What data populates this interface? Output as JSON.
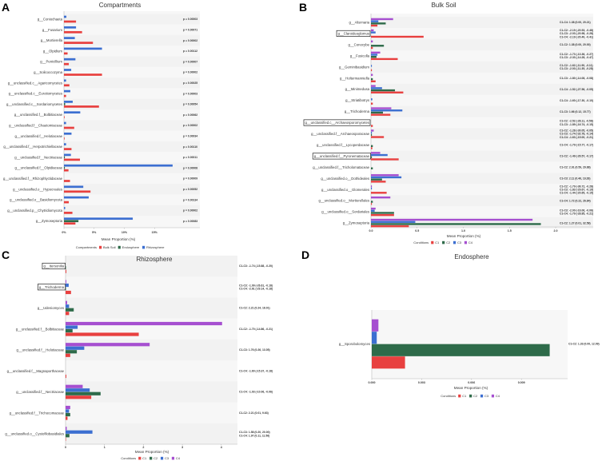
{
  "chart_data": [
    {
      "panel_letter": "A",
      "type": "bar",
      "orientation": "horizontal",
      "title": "Compartments",
      "xlabel": "Mean Proportion (%)",
      "xticks": [
        0,
        5,
        10,
        15
      ],
      "xtick_labels": [
        "0%",
        "5%",
        "10%",
        "15%"
      ],
      "legend_title": "Compartments",
      "legend": [
        "Bulk Soil",
        "Endosphere",
        "Rhizosphere"
      ],
      "legend_colors": [
        "#e8403f",
        "#2e6b4a",
        "#3c6fd1"
      ],
      "boxed": [],
      "categories": [
        "g__Coniochaeta",
        "g__Fusarium",
        "g__Mortierella",
        "g__Olpidium",
        "g__Penicillium",
        "g__Solicoccozyma",
        "g__unclassified.c__Agaricomycetes",
        "g__unclassified.c__Eurotiomycetes",
        "g__unclassified.c__Sordariomycetes",
        "g__unclassified.f__Bolbitiaceae",
        "g__unclassified.f__Chaetomiaceae",
        "g__unclassified.f__Helotiaceae",
        "g__unclassified.f__Herpotrichiellaceae",
        "g__unclassified.f__Nectriaceae",
        "g__unclassified.f__Olpidiaceae",
        "g__unclassified.f__Rhizophlyctidaceae",
        "g__unclassified.o__Hypocreales",
        "g__unclassified.o__Basidiomycota",
        "g__unclassified.p__Chytridiomycota",
        "g__Zymoseptoria"
      ],
      "series": [
        {
          "name": "Rhizosphere",
          "color": "#3c6fd1",
          "values": [
            0.4,
            2.0,
            1.8,
            6.3,
            1.9,
            1.2,
            0.35,
            1.05,
            1.45,
            2.7,
            0.35,
            1.25,
            0.35,
            1.15,
            18.0,
            0,
            3.2,
            4.1,
            0.2,
            11.4
          ]
        },
        {
          "name": "Endosphere",
          "color": "#2e6b4a",
          "values": [
            0,
            0.05,
            0,
            0,
            0,
            0,
            0,
            0,
            0.2,
            0,
            0,
            0,
            0,
            0.15,
            0.15,
            0,
            0,
            0,
            0,
            2.4
          ]
        },
        {
          "name": "Bulk Soil",
          "color": "#e8403f",
          "values": [
            2.0,
            3.0,
            4.8,
            0.6,
            0.8,
            6.3,
            0.9,
            0.35,
            5.8,
            0.1,
            1.7,
            0.1,
            1.25,
            2.65,
            0.75,
            1.0,
            4.4,
            0.8,
            1.4,
            1.9
          ]
        }
      ],
      "annotations": [
        [
          "p = 0.00003"
        ],
        [
          "p = 0.00071"
        ],
        [
          "p = 0.00002"
        ],
        [
          "p = 0.00112"
        ],
        [
          "p = 0.00007"
        ],
        [
          "p = 0.00002"
        ],
        [
          "p = 0.00025"
        ],
        [
          "p = 0.00003"
        ],
        [
          "p = 0.00054"
        ],
        [
          "p = 0.00062"
        ],
        [
          "p = 0.00002"
        ],
        [
          "p = 0.00034"
        ],
        [
          "p = 0.00110"
        ],
        [
          "p = 0.00011"
        ],
        [
          "p = 0.00008"
        ],
        [
          "p = 0.00009"
        ],
        [
          "p = 0.00052"
        ],
        [
          "p = 0.00134"
        ],
        [
          "p = 0.00002"
        ],
        [
          "p = 0.00083"
        ]
      ]
    },
    {
      "panel_letter": "B",
      "type": "bar",
      "orientation": "horizontal",
      "title": "Bulk Soil",
      "xlabel": "Mean Proportion (%)",
      "xticks": [
        0,
        0.5,
        1.0,
        1.5,
        2.0
      ],
      "xtick_labels": [
        "0.0",
        "0.5",
        "1.0",
        "1.5",
        "2.0"
      ],
      "legend_title": "Conditions",
      "legend": [
        "C1",
        "C2",
        "C3",
        "C4"
      ],
      "legend_colors": [
        "#e8403f",
        "#2e6b4a",
        "#3c6fd1",
        "#a64fd0"
      ],
      "boxed": [
        "g__Claroideoglomus",
        "g__unclassified.c__Archaeosporomycetes",
        "g__unclassified.f__Pyronemataceae"
      ],
      "categories": [
        "g__Alternaria",
        "g__Claroideoglomus",
        "g__Conocybe",
        "g__Fusicolla",
        "g__Geminibasidium",
        "g__Holtermanniella",
        "g__Minimedusa",
        "g__Striatibotrys",
        "g__Trichoderma",
        "g__unclassified.c__Archaeosporomycetes",
        "g__unclassified.f__Archaeosporaceae",
        "g__unclassified.f__Lycoperdaceae",
        "g__unclassified.f__Pyronemataceae",
        "g__unclassified.f__Tricholomataceae",
        "g__unclassified.o__Dothideales",
        "g__unclassified.o__Glomerales",
        "g__unclassified.o__Mortierellales",
        "g__unclassified.o__Sordariales",
        "g__Zymoseptoria"
      ],
      "series": [
        {
          "name": "C4",
          "color": "#a64fd0",
          "values": [
            0.24,
            0.03,
            0.02,
            0.1,
            0,
            0.02,
            0.05,
            0,
            0.22,
            0,
            0.03,
            0,
            0.1,
            0,
            0.3,
            0.01,
            0.21,
            0.05,
            1.75
          ]
        },
        {
          "name": "C3",
          "color": "#3c6fd1",
          "values": [
            0.08,
            0.05,
            0,
            0.07,
            0.01,
            0,
            0.12,
            0.015,
            0.34,
            0,
            0.01,
            0,
            0.18,
            0,
            0.33,
            0.01,
            0,
            0.04,
            0.48
          ]
        },
        {
          "name": "C2",
          "color": "#2e6b4a",
          "values": [
            0.16,
            0,
            0.14,
            0.06,
            0,
            0.02,
            0.26,
            0,
            0.13,
            0,
            0.01,
            0.02,
            0.01,
            0.02,
            0.12,
            0,
            0.02,
            0.25,
            1.84
          ]
        },
        {
          "name": "C1",
          "color": "#e8403f",
          "values": [
            0.07,
            0.57,
            0.02,
            0.29,
            0.01,
            0.05,
            0.35,
            0.02,
            0.21,
            0.02,
            0.14,
            0.015,
            0.3,
            0,
            0.16,
            0.17,
            0.01,
            0.25,
            0.41
          ]
        }
      ],
      "annotations": [
        [
          "C1-C4: 1.38 (0.00, 20.21)"
        ],
        [
          "C1-C2: -2.19 (-20.53, -0.48)",
          "C1-C3: -2.03 (-20.98, -0.28)",
          "C1-C4: -2.19 (-20.40, -0.41)"
        ],
        [
          "C1-C2: 1.38 (0.00, 20.00)"
        ],
        [
          "C1-C2: -1.73 (-13.36, -0.27)",
          "C1-C3: -2.33 (-14.28, -0.47)"
        ],
        [
          "C1-C2: -1.62 (-11.90, -0.11)",
          "C1-C3: -2.03 (-11.35, -0.28)"
        ],
        [
          "C1-C3: -1.80 (-14.08, -0.08)"
        ],
        [
          "C1-C4: -1.52 (-27.56, -0.05)"
        ],
        [
          "C1-C4: -1.60 (-17.30, -0.10)"
        ],
        [
          "C1-C3: 1.66 (0.12, 15.77)"
        ],
        [
          "C1-C2: -2.52 (-28.11, -0.58)",
          "C1-C3: -1.89 (-16.74, -0.15)"
        ],
        [
          "C1-C2: -1.28 (-30.05, -0.05)",
          "C1-C3: -1.74 (-32.78, -0.14)",
          "C1-C4: -1.63 (-15.00, -0.21)"
        ],
        [
          "C1-C4: -1.79 (-15.77, -0.17)"
        ],
        [
          "C1-C2: -1.49 (-26.57, -0.17)"
        ],
        [
          "C1-C2: 2.91 (0.59, 29.88)"
        ],
        [
          "C1-C3: 2.11 (0.46, 19.28)"
        ],
        [
          "C1-C2: -1.79 (-36.72, -0.28)",
          "C1-C3: -1.83 (-29.67, -0.19)",
          "C1-C4: -1.44 (-20.65, -0.15)"
        ],
        [
          "C1-C4: 1.72 (0.22, 26.84)"
        ],
        [
          "C1-C3: -2.00 (-16.06, -0.06)",
          "C1-C4: -1.79 (-28.85, -0.21)"
        ],
        [
          "C1-C2: 1.27 (0.01, 32.58)"
        ]
      ]
    },
    {
      "panel_letter": "C",
      "type": "bar",
      "orientation": "horizontal",
      "title": "Rhizosphere",
      "xlabel": "Mean Proportion (%)",
      "xticks": [
        0,
        1,
        2,
        3,
        4
      ],
      "xtick_labels": [
        "0",
        "1",
        "2",
        "3",
        "4"
      ],
      "legend_title": "Conditions",
      "legend": [
        "C1",
        "C2",
        "C3",
        "C4"
      ],
      "legend_colors": [
        "#e8403f",
        "#2e6b4a",
        "#3c6fd1",
        "#a64fd0"
      ],
      "boxed": [
        "g__Itersonilia",
        "g__Trichoderma"
      ],
      "categories": [
        "g__Itersonilia",
        "g__Trichoderma",
        "g__Udeniomyces",
        "g__unclassified.f__Bolbitiaceae",
        "g__unclassified.f__Helotiaceae",
        "g__unclassified.f__Magnaporthaceae",
        "g__unclassified.f__Nectriaceae",
        "g__unclassified.f__Trichocomaceae",
        "g__unclassified.o__Cystofilobasidiales"
      ],
      "series": [
        {
          "name": "C4",
          "color": "#a64fd0",
          "values": [
            0,
            0.02,
            0.04,
            4.02,
            2.16,
            0,
            0.44,
            0.12,
            0.03
          ]
        },
        {
          "name": "C3",
          "color": "#3c6fd1",
          "values": [
            0,
            0.08,
            0.09,
            0.31,
            0.48,
            0,
            0.62,
            0.09,
            0.69
          ]
        },
        {
          "name": "C2",
          "color": "#2e6b4a",
          "values": [
            0.01,
            0.01,
            0.21,
            0.18,
            0.29,
            0,
            0.9,
            0.12,
            0.1
          ]
        },
        {
          "name": "C1",
          "color": "#e8403f",
          "values": [
            0.02,
            0.14,
            0.09,
            1.88,
            0.12,
            0.02,
            0.66,
            0.05,
            0.01
          ]
        }
      ],
      "annotations": [
        [
          "C1-C3: -1.74 (-15.88, -0.20)"
        ],
        [
          "C1-C3: -1.99 (-26.61, -0.18)",
          "C1-C4: -2.61 (-29.14, -0.18)"
        ],
        [
          "C1-C2: 2.21 (0.24, 18.01)"
        ],
        [
          "C1-C2: -1.70 (-14.86, -0.21)"
        ],
        [
          "C1-C3: 1.76 (0.26, 13.05)"
        ],
        [
          "C1-C4: -1.60 (-15.37, -0.18)"
        ],
        [
          "C1-C4: -1.93 (-10.06, -0.06)"
        ],
        [
          "C1-C2: 2.21 (0.01, 9.63)"
        ],
        [
          "C1-C3: 1.58 (0.20, 20.00)",
          "C1-C4: 1.97 (0.11, 11.56)"
        ]
      ]
    },
    {
      "panel_letter": "D",
      "type": "bar",
      "orientation": "horizontal",
      "title": "Endosphere",
      "xlabel": "Mean Proportion (%)",
      "xticks": [
        0,
        0.003,
        0.006,
        0.009
      ],
      "xtick_labels": [
        "0.000",
        "0.003",
        "0.006",
        "0.009"
      ],
      "legend_title": "Conditions",
      "legend": [
        "C1",
        "C2",
        "C3",
        "C4"
      ],
      "legend_colors": [
        "#e8403f",
        "#2e6b4a",
        "#3c6fd1",
        "#a64fd0"
      ],
      "boxed": [],
      "categories": [
        "g__Sporobolomyces"
      ],
      "series": [
        {
          "name": "C4",
          "color": "#a64fd0",
          "values": [
            0.0004
          ]
        },
        {
          "name": "C3",
          "color": "#3c6fd1",
          "values": [
            0.0003
          ]
        },
        {
          "name": "C2",
          "color": "#2e6b4a",
          "values": [
            0.0107
          ]
        },
        {
          "name": "C1",
          "color": "#e8403f",
          "values": [
            0.002
          ]
        }
      ],
      "annotations": [
        [
          "C1-C2: 1.33 (0.00, 12.09)"
        ]
      ]
    }
  ]
}
